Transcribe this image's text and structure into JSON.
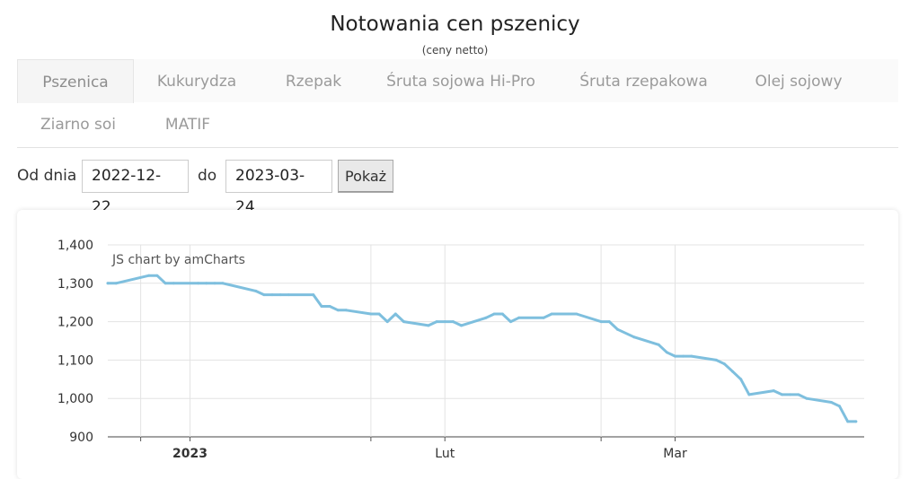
{
  "header": {
    "title": "Notowania cen pszenicy",
    "subtitle": "(ceny netto)"
  },
  "tabs": [
    {
      "label": "Pszenica",
      "active": true
    },
    {
      "label": "Kukurydza"
    },
    {
      "label": "Rzepak"
    },
    {
      "label": "Śruta sojowa Hi-Pro"
    },
    {
      "label": "Śruta rzepakowa"
    },
    {
      "label": "Olej sojowy"
    },
    {
      "label": "Ziarno soi"
    },
    {
      "label": "MATIF"
    }
  ],
  "form": {
    "from_label": "Od dnia",
    "from_value": "2022-12-22",
    "to_label": "do",
    "to_value": "2023-03-24",
    "button_label": "Pokaż"
  },
  "chart_data": {
    "type": "line",
    "credit": "JS chart by amCharts",
    "color": "#7ebfde",
    "ylim": [
      900,
      1400
    ],
    "y_ticks": [
      {
        "value": 1400,
        "label": "1,400"
      },
      {
        "value": 1300,
        "label": "1,300"
      },
      {
        "value": 1200,
        "label": "1,200"
      },
      {
        "value": 1100,
        "label": "1,100"
      },
      {
        "value": 1000,
        "label": "1,000"
      },
      {
        "value": 900,
        "label": "900"
      }
    ],
    "xlim": [
      "2022-12-22",
      "2023-03-24"
    ],
    "x_ticks": [
      {
        "date": "2022-12-26",
        "label": ""
      },
      {
        "date": "2023-01-01",
        "label": "2023",
        "bold": true
      },
      {
        "date": "2023-01-23",
        "label": ""
      },
      {
        "date": "2023-02-01",
        "label": "Lut"
      },
      {
        "date": "2023-02-20",
        "label": ""
      },
      {
        "date": "2023-03-01",
        "label": "Mar"
      }
    ],
    "grid": true,
    "series": [
      {
        "points": [
          [
            "2022-12-22",
            1300
          ],
          [
            "2022-12-23",
            1300
          ],
          [
            "2022-12-27",
            1320
          ],
          [
            "2022-12-28",
            1320
          ],
          [
            "2022-12-29",
            1300
          ],
          [
            "2022-12-30",
            1300
          ],
          [
            "2023-01-02",
            1300
          ],
          [
            "2023-01-03",
            1300
          ],
          [
            "2023-01-04",
            1300
          ],
          [
            "2023-01-05",
            1300
          ],
          [
            "2023-01-09",
            1280
          ],
          [
            "2023-01-10",
            1270
          ],
          [
            "2023-01-11",
            1270
          ],
          [
            "2023-01-12",
            1270
          ],
          [
            "2023-01-13",
            1270
          ],
          [
            "2023-01-16",
            1270
          ],
          [
            "2023-01-17",
            1240
          ],
          [
            "2023-01-18",
            1240
          ],
          [
            "2023-01-19",
            1230
          ],
          [
            "2023-01-20",
            1230
          ],
          [
            "2023-01-23",
            1220
          ],
          [
            "2023-01-24",
            1220
          ],
          [
            "2023-01-25",
            1200
          ],
          [
            "2023-01-26",
            1220
          ],
          [
            "2023-01-27",
            1200
          ],
          [
            "2023-01-30",
            1190
          ],
          [
            "2023-01-31",
            1200
          ],
          [
            "2023-02-01",
            1200
          ],
          [
            "2023-02-02",
            1200
          ],
          [
            "2023-02-03",
            1190
          ],
          [
            "2023-02-06",
            1210
          ],
          [
            "2023-02-07",
            1220
          ],
          [
            "2023-02-08",
            1220
          ],
          [
            "2023-02-09",
            1200
          ],
          [
            "2023-02-10",
            1210
          ],
          [
            "2023-02-13",
            1210
          ],
          [
            "2023-02-14",
            1220
          ],
          [
            "2023-02-15",
            1220
          ],
          [
            "2023-02-16",
            1220
          ],
          [
            "2023-02-17",
            1220
          ],
          [
            "2023-02-20",
            1200
          ],
          [
            "2023-02-21",
            1200
          ],
          [
            "2023-02-22",
            1180
          ],
          [
            "2023-02-24",
            1160
          ],
          [
            "2023-02-27",
            1140
          ],
          [
            "2023-02-28",
            1120
          ],
          [
            "2023-03-01",
            1110
          ],
          [
            "2023-03-02",
            1110
          ],
          [
            "2023-03-03",
            1110
          ],
          [
            "2023-03-06",
            1100
          ],
          [
            "2023-03-07",
            1090
          ],
          [
            "2023-03-08",
            1070
          ],
          [
            "2023-03-09",
            1050
          ],
          [
            "2023-03-10",
            1010
          ],
          [
            "2023-03-13",
            1020
          ],
          [
            "2023-03-14",
            1010
          ],
          [
            "2023-03-15",
            1010
          ],
          [
            "2023-03-16",
            1010
          ],
          [
            "2023-03-17",
            1000
          ],
          [
            "2023-03-20",
            990
          ],
          [
            "2023-03-21",
            980
          ],
          [
            "2023-03-22",
            940
          ],
          [
            "2023-03-23",
            940
          ]
        ]
      }
    ]
  }
}
